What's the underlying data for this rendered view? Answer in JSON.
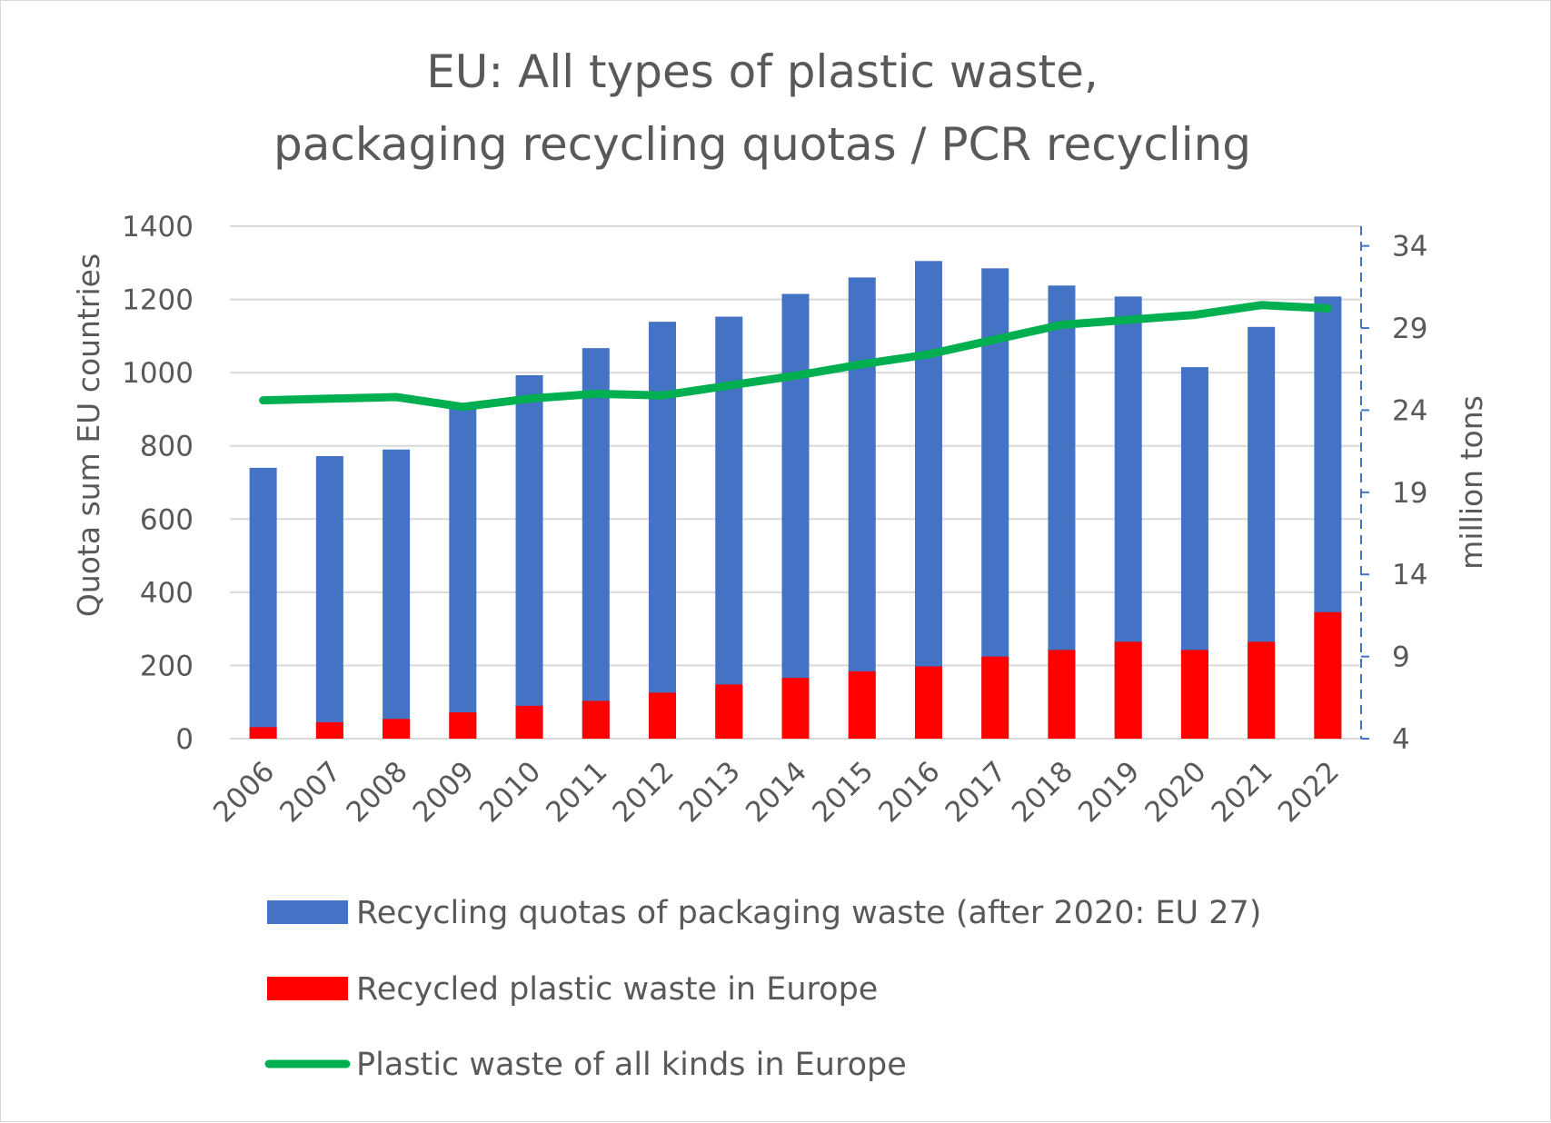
{
  "chart_data": {
    "type": "bar",
    "title_lines": [
      "EU: All types of plastic waste,",
      "packaging recycling quotas / PCR recycling"
    ],
    "categories": [
      "2006",
      "2007",
      "2008",
      "2009",
      "2010",
      "2011",
      "2012",
      "2013",
      "2014",
      "2015",
      "2016",
      "2017",
      "2018",
      "2019",
      "2020",
      "2021",
      "2022"
    ],
    "y_left": {
      "label": "Quota sum EU countries",
      "min": 0,
      "max": 1400,
      "ticks": [
        0,
        200,
        400,
        600,
        800,
        1000,
        1200,
        1400
      ]
    },
    "y_right": {
      "label": "million tons",
      "min": 4,
      "max": 35.2,
      "ticks": [
        4,
        9,
        14,
        19,
        24,
        29,
        34
      ]
    },
    "grid": true,
    "legend_position": "bottom",
    "series": [
      {
        "name": "Recycling quotas of packaging waste (after 2020: EU 27)",
        "type": "bar",
        "axis": "left",
        "color": "#4472c4",
        "values": [
          740,
          772,
          790,
          910,
          993,
          1067,
          1139,
          1153,
          1215,
          1260,
          1305,
          1285,
          1238,
          1208,
          1015,
          1125,
          1208
        ]
      },
      {
        "name": "Recycled plastic waste in Europe",
        "type": "bar",
        "axis": "right",
        "color": "#ff0000",
        "values": [
          4.7,
          5.0,
          5.2,
          5.6,
          6.0,
          6.3,
          6.8,
          7.3,
          7.7,
          8.1,
          8.4,
          9.0,
          9.4,
          9.9,
          9.4,
          9.9,
          11.7
        ]
      },
      {
        "name": "Plastic waste of all kinds in Europe",
        "type": "line",
        "axis": "right",
        "color": "#00b050",
        "values": [
          24.6,
          24.7,
          24.8,
          24.2,
          24.7,
          25.0,
          24.9,
          25.5,
          26.1,
          26.8,
          27.4,
          28.3,
          29.2,
          29.5,
          29.8,
          30.4,
          30.2
        ]
      }
    ]
  }
}
